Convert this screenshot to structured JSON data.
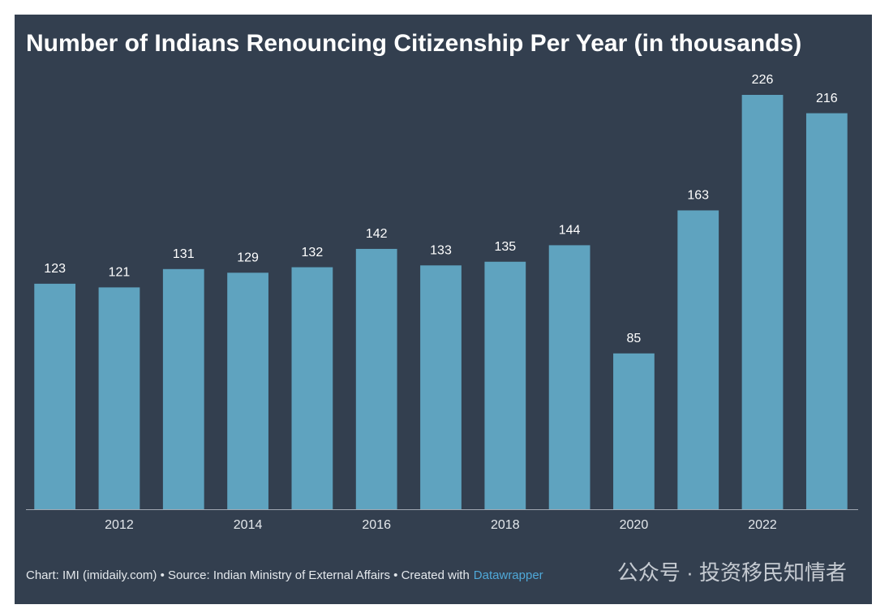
{
  "chart_data": {
    "type": "bar",
    "title": "Number of Indians Renouncing Citizenship Per Year (in thousands)",
    "categories": [
      null,
      "2012",
      null,
      "2014",
      null,
      "2016",
      null,
      "2018",
      null,
      "2020",
      null,
      "2022",
      null
    ],
    "values": [
      123,
      121,
      131,
      129,
      132,
      142,
      133,
      135,
      144,
      85,
      163,
      226,
      216
    ],
    "color": "#5fa3bf",
    "caption": "Chart: IMI (imidaily.com) • Source: Indian Ministry of External Affairs • Created with",
    "caption_link": "Datawrapper",
    "watermark": "公众号 · 投资移民知情者"
  }
}
